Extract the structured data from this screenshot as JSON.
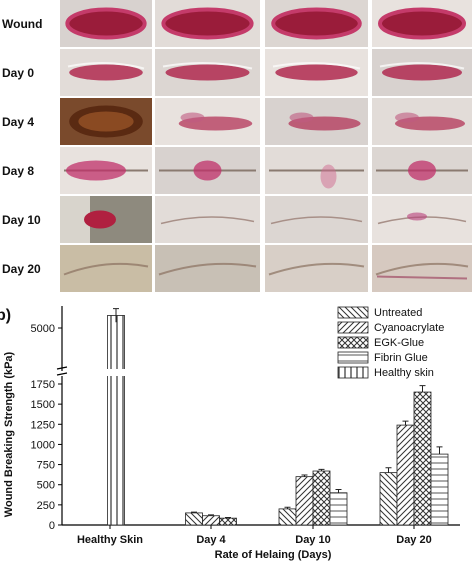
{
  "photo_panel": {
    "row_labels": [
      "Wound",
      "Day 0",
      "Day 4",
      "Day 8",
      "Day 10",
      "Day 20"
    ]
  },
  "panel_label": "b)",
  "chart_data": {
    "type": "bar",
    "categories": [
      "Healthy Skin",
      "Day 4",
      "Day 10",
      "Day 20"
    ],
    "xlabel": "Rate of Helaing (Days)",
    "ylabel": "Wound Breaking Strength (kPa)",
    "ylim": [
      0,
      1800
    ],
    "y_break": true,
    "upper_tick": 5000,
    "yticks": [
      0,
      250,
      500,
      750,
      1000,
      1250,
      1500,
      1750
    ],
    "legend_position": "top-right",
    "series": [
      {
        "name": "Untreated",
        "values": [
          null,
          150,
          200,
          650
        ],
        "errors": [
          0,
          10,
          20,
          60
        ],
        "pattern": "diag-back"
      },
      {
        "name": "Cyanoacrylate",
        "values": [
          null,
          115,
          600,
          1240
        ],
        "errors": [
          0,
          10,
          20,
          50
        ],
        "pattern": "diag-fwd"
      },
      {
        "name": "EGK-Glue",
        "values": [
          null,
          85,
          670,
          1650
        ],
        "errors": [
          0,
          8,
          20,
          80
        ],
        "pattern": "cross"
      },
      {
        "name": "Fibrin Glue",
        "values": [
          null,
          null,
          400,
          880
        ],
        "errors": [
          0,
          0,
          40,
          90
        ],
        "pattern": "horiz"
      },
      {
        "name": "Healthy skin",
        "values": [
          5550,
          null,
          null,
          null
        ],
        "errors": [
          300,
          0,
          0,
          0
        ],
        "pattern": "vert"
      }
    ]
  }
}
